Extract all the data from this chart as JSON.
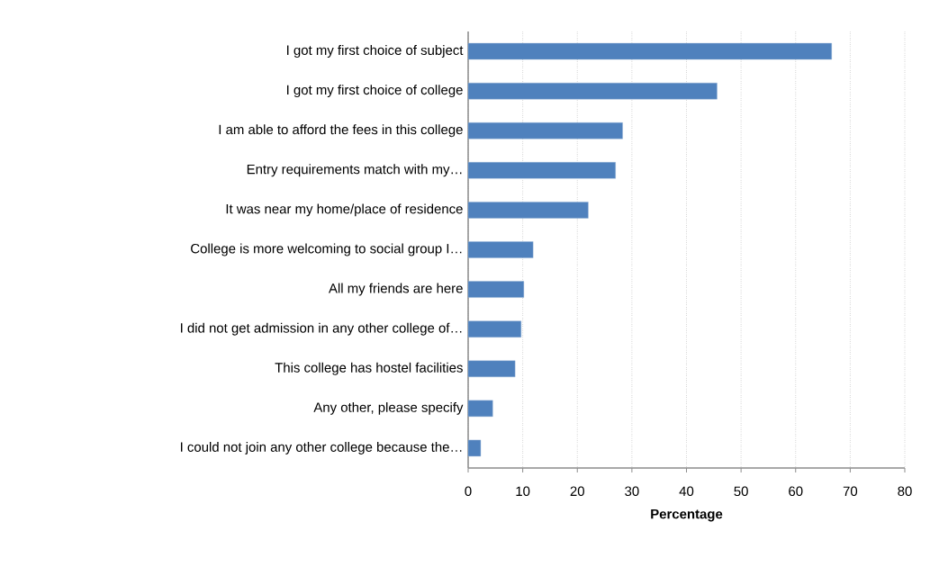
{
  "chart_data": {
    "type": "bar",
    "orientation": "horizontal",
    "xlabel": "Percentage",
    "categories": [
      "I got my first choice of subject",
      "I got my first choice of college",
      "I am able to afford the fees in this college",
      "Entry requirements match with my…",
      "It was near my home/place of residence",
      "College is more welcoming to social group I…",
      "All my friends are here",
      "I did not get admission in any other college of…",
      "This college has hostel facilities",
      "Any other, please specify",
      "I could not join any other college because the…"
    ],
    "values": [
      66.6,
      45.6,
      28.3,
      27.0,
      22.0,
      11.9,
      10.2,
      9.7,
      8.6,
      4.5,
      2.3
    ],
    "color": "#4f81bd",
    "xlim": [
      0,
      80
    ],
    "xticks": [
      0,
      10,
      20,
      30,
      40,
      50,
      60,
      70,
      80
    ],
    "grid": "x"
  }
}
